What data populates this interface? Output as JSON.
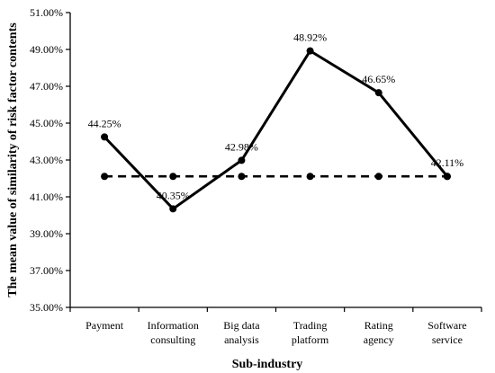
{
  "chart_data": {
    "type": "line",
    "xlabel": "Sub-industry",
    "ylabel": "The mean value of similarity of risk factor contents",
    "ylim": [
      35,
      51
    ],
    "ytick_step": 2,
    "y_tick_labels": [
      "35.00%",
      "37.00%",
      "39.00%",
      "41.00%",
      "43.00%",
      "45.00%",
      "47.00%",
      "49.00%",
      "51.00%"
    ],
    "categories": [
      [
        "Payment"
      ],
      [
        "Information",
        "consulting"
      ],
      [
        "Big data",
        "analysis"
      ],
      [
        "Trading",
        "platform"
      ],
      [
        "Rating",
        "agency"
      ],
      [
        "Software",
        "service"
      ]
    ],
    "series": [
      {
        "style": "solid",
        "color": "#000000",
        "values": [
          44.25,
          40.35,
          42.98,
          48.92,
          46.65,
          42.11
        ],
        "data_labels": [
          "44.25%",
          "40.35%",
          "42.98%",
          "48.92%",
          "46.65%",
          "42.11%"
        ]
      },
      {
        "style": "dashed",
        "color": "#000000",
        "values": [
          42.11,
          42.11,
          42.11,
          42.11,
          42.11,
          42.11
        ]
      }
    ],
    "grid": false,
    "legend": "none"
  }
}
